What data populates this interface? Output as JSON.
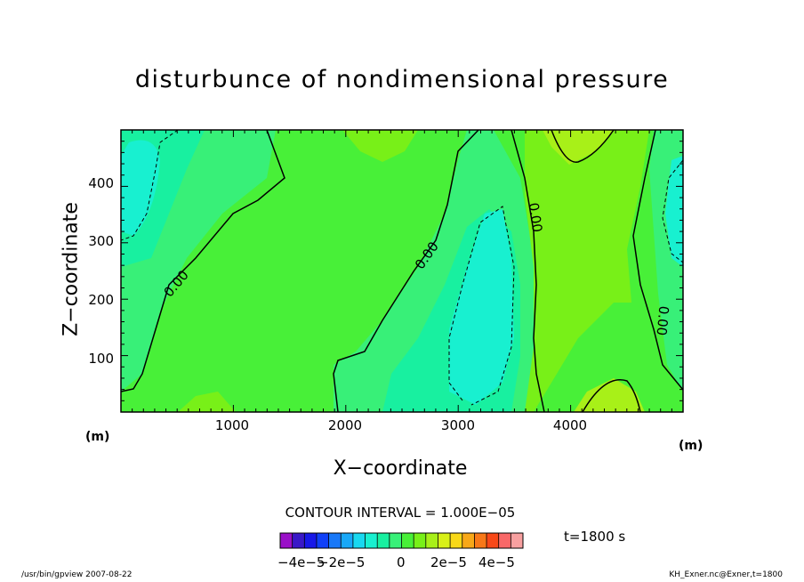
{
  "chart_data": {
    "type": "contour",
    "title": "disturbunce of nondimensional pressure",
    "xlabel": "X−coordinate",
    "ylabel": "Z−coordinate",
    "x_unit": "(m)",
    "y_unit": "(m)",
    "xlim": [
      0,
      5000
    ],
    "ylim": [
      0,
      500
    ],
    "x_ticks": [
      1000,
      2000,
      3000,
      4000
    ],
    "y_ticks": [
      100,
      200,
      300,
      400
    ],
    "contour_interval": "CONTOUR INTERVAL = 1.000E−05",
    "contour_labels": [
      "0.00",
      "0.00",
      "0.00",
      "0.00"
    ],
    "time_label": "t=1800 s",
    "colorbar": {
      "labels": [
        "−4e−5",
        "−2e−5",
        "0",
        "2e−5",
        "4e−5"
      ],
      "colors": [
        "#9a10c8",
        "#3a18c8",
        "#1818e8",
        "#1040f8",
        "#1878f8",
        "#18a8f8",
        "#18d8f0",
        "#18f0d0",
        "#18f0a0",
        "#38f078",
        "#48f038",
        "#78f018",
        "#a8f018",
        "#d8f018",
        "#f8d818",
        "#f8a818",
        "#f87818",
        "#f84818",
        "#f86868",
        "#f8a0a0"
      ]
    },
    "grid": false
  },
  "footer": {
    "left": "/usr/bin/gpview   2007-08-22",
    "right": "KH_Exner.nc@Exner,t=1800"
  }
}
